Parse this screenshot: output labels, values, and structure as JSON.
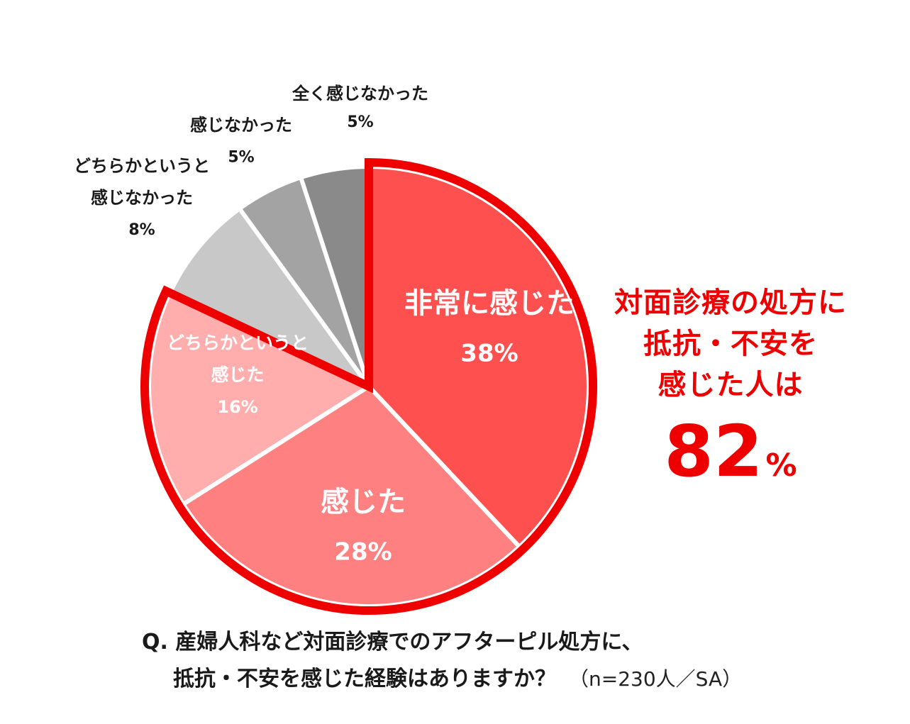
{
  "chart_data": {
    "type": "pie",
    "slices": [
      {
        "label_lines": [
          "非常に感じた"
        ],
        "value": 38,
        "value_label": "38%",
        "color": "#ff5050",
        "highlight": true
      },
      {
        "label_lines": [
          "感じた"
        ],
        "value": 28,
        "value_label": "28%",
        "color": "#ff8080",
        "highlight": true
      },
      {
        "label_lines": [
          "どちらかというと",
          "感じた"
        ],
        "value": 16,
        "value_label": "16%",
        "color": "#ffadad",
        "highlight": true
      },
      {
        "label_lines": [
          "どちらかというと",
          "感じなかった"
        ],
        "value": 8,
        "value_label": "8%",
        "color": "#c8c8c8",
        "highlight": false
      },
      {
        "label_lines": [
          "感じなかった"
        ],
        "value": 5,
        "value_label": "5%",
        "color": "#a3a3a3",
        "highlight": false
      },
      {
        "label_lines": [
          "全く感じなかった"
        ],
        "value": 5,
        "value_label": "5%",
        "color": "#8a8a8a",
        "highlight": false
      }
    ],
    "start": "12 o'clock",
    "direction": "clockwise",
    "highlight_color": "#ee0000"
  },
  "callout": {
    "line1": "対面診療の処方に",
    "line2": "抵抗・不安を",
    "line3": "感じた人は",
    "value": "82",
    "unit": "%"
  },
  "question": {
    "line1": "Q. 産婦人科など対面診療でのアフターピル処方に、",
    "line2": "抵抗・不安を感じた経験はありますか？",
    "sample": "（n=230人／SA）"
  }
}
